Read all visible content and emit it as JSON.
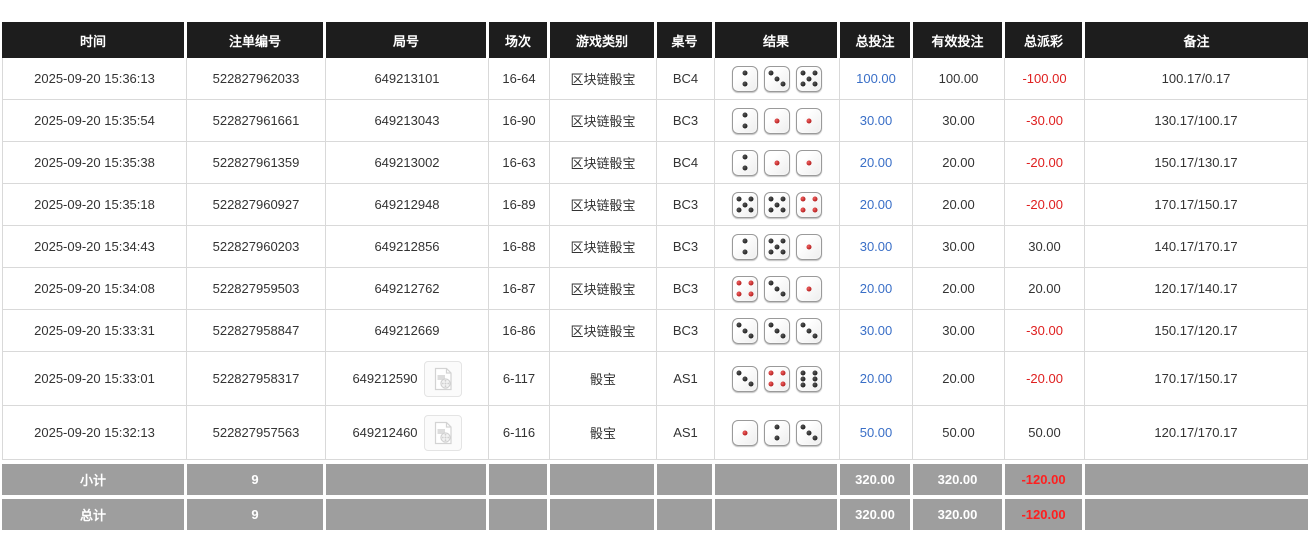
{
  "table": {
    "columns": [
      {
        "key": "time",
        "label": "时间"
      },
      {
        "key": "bet_id",
        "label": "注单编号"
      },
      {
        "key": "round_id",
        "label": "局号"
      },
      {
        "key": "session",
        "label": "场次"
      },
      {
        "key": "game_type",
        "label": "游戏类别"
      },
      {
        "key": "table_no",
        "label": "桌号"
      },
      {
        "key": "result",
        "label": "结果"
      },
      {
        "key": "total_bet",
        "label": "总投注"
      },
      {
        "key": "valid_bet",
        "label": "有效投注"
      },
      {
        "key": "total_payout",
        "label": "总派彩"
      },
      {
        "key": "remark",
        "label": "备注"
      }
    ],
    "rows": [
      {
        "time": "2025-09-20 15:36:13",
        "bet_id": "522827962033",
        "round_id": "649213101",
        "has_video": false,
        "session": "16-64",
        "game_type": "区块链骰宝",
        "table_no": "BC4",
        "dice": [
          2,
          3,
          5
        ],
        "total_bet": "100.00",
        "valid_bet": "100.00",
        "total_payout": "-100.00",
        "remark": "100.17/0.17"
      },
      {
        "time": "2025-09-20 15:35:54",
        "bet_id": "522827961661",
        "round_id": "649213043",
        "has_video": false,
        "session": "16-90",
        "game_type": "区块链骰宝",
        "table_no": "BC3",
        "dice": [
          2,
          1,
          1
        ],
        "total_bet": "30.00",
        "valid_bet": "30.00",
        "total_payout": "-30.00",
        "remark": "130.17/100.17"
      },
      {
        "time": "2025-09-20 15:35:38",
        "bet_id": "522827961359",
        "round_id": "649213002",
        "has_video": false,
        "session": "16-63",
        "game_type": "区块链骰宝",
        "table_no": "BC4",
        "dice": [
          2,
          1,
          1
        ],
        "total_bet": "20.00",
        "valid_bet": "20.00",
        "total_payout": "-20.00",
        "remark": "150.17/130.17"
      },
      {
        "time": "2025-09-20 15:35:18",
        "bet_id": "522827960927",
        "round_id": "649212948",
        "has_video": false,
        "session": "16-89",
        "game_type": "区块链骰宝",
        "table_no": "BC3",
        "dice": [
          5,
          5,
          4
        ],
        "total_bet": "20.00",
        "valid_bet": "20.00",
        "total_payout": "-20.00",
        "remark": "170.17/150.17"
      },
      {
        "time": "2025-09-20 15:34:43",
        "bet_id": "522827960203",
        "round_id": "649212856",
        "has_video": false,
        "session": "16-88",
        "game_type": "区块链骰宝",
        "table_no": "BC3",
        "dice": [
          2,
          5,
          1
        ],
        "total_bet": "30.00",
        "valid_bet": "30.00",
        "total_payout": "30.00",
        "remark": "140.17/170.17"
      },
      {
        "time": "2025-09-20 15:34:08",
        "bet_id": "522827959503",
        "round_id": "649212762",
        "has_video": false,
        "session": "16-87",
        "game_type": "区块链骰宝",
        "table_no": "BC3",
        "dice": [
          4,
          3,
          1
        ],
        "total_bet": "20.00",
        "valid_bet": "20.00",
        "total_payout": "20.00",
        "remark": "120.17/140.17"
      },
      {
        "time": "2025-09-20 15:33:31",
        "bet_id": "522827958847",
        "round_id": "649212669",
        "has_video": false,
        "session": "16-86",
        "game_type": "区块链骰宝",
        "table_no": "BC3",
        "dice": [
          3,
          3,
          3
        ],
        "total_bet": "30.00",
        "valid_bet": "30.00",
        "total_payout": "-30.00",
        "remark": "150.17/120.17"
      },
      {
        "time": "2025-09-20 15:33:01",
        "bet_id": "522827958317",
        "round_id": "649212590",
        "has_video": true,
        "session": "6-117",
        "game_type": "骰宝",
        "table_no": "AS1",
        "dice": [
          3,
          4,
          6
        ],
        "total_bet": "20.00",
        "valid_bet": "20.00",
        "total_payout": "-20.00",
        "remark": "170.17/150.17"
      },
      {
        "time": "2025-09-20 15:32:13",
        "bet_id": "522827957563",
        "round_id": "649212460",
        "has_video": true,
        "session": "6-116",
        "game_type": "骰宝",
        "table_no": "AS1",
        "dice": [
          1,
          2,
          3
        ],
        "total_bet": "50.00",
        "valid_bet": "50.00",
        "total_payout": "50.00",
        "remark": "120.17/170.17"
      }
    ],
    "footer": [
      {
        "label": "小计",
        "count": "9",
        "total_bet": "320.00",
        "valid_bet": "320.00",
        "total_payout": "-120.00"
      },
      {
        "label": "总计",
        "count": "9",
        "total_bet": "320.00",
        "valid_bet": "320.00",
        "total_payout": "-120.00"
      }
    ]
  },
  "icons": {
    "video_icon": "video-file-placeholder"
  },
  "colors": {
    "header_bg": "#1d1d1d",
    "footer_bg": "#9e9e9e",
    "bet_blue": "#3a6fc7",
    "loss_red": "#df2020",
    "footer_red": "#ff1f1f",
    "dice_red_pip": "#9c0606",
    "dice_black_pip": "#0d0d0d"
  }
}
